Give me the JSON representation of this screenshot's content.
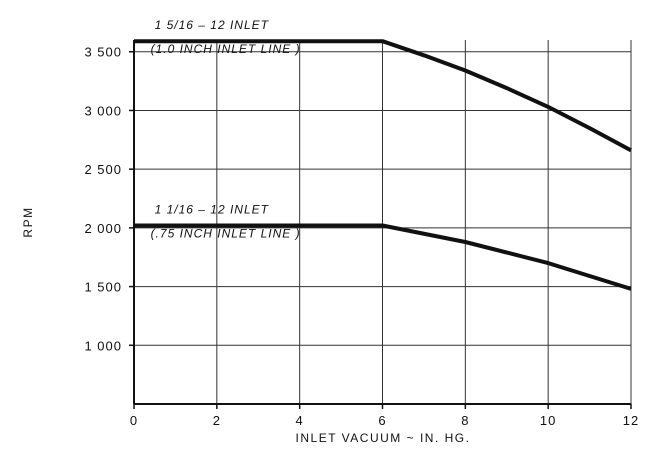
{
  "chart_data": {
    "type": "line",
    "title": "",
    "xlabel": "INLET  VACUUM ~ IN. HG.",
    "ylabel": "RPM",
    "xlim": [
      0,
      12
    ],
    "ylim": [
      500,
      3600
    ],
    "grid": true,
    "x_ticks": [
      0,
      2,
      4,
      6,
      8,
      10,
      12
    ],
    "y_ticks": [
      1000,
      1500,
      2000,
      2500,
      3000,
      3500
    ],
    "x_tick_labels": [
      "0",
      "2",
      "4",
      "6",
      "8",
      "10",
      "12"
    ],
    "y_tick_labels": [
      "1 000",
      "1 500",
      "2 000",
      "2 500",
      "3 000",
      "3 500"
    ],
    "series": [
      {
        "label_lines": [
          "1 5/16 – 12  INLET",
          "(1.0 INCH  INLET  LINE )"
        ],
        "x": [
          0,
          6,
          7,
          8,
          9,
          10,
          11,
          12
        ],
        "y": [
          3590,
          3590,
          3470,
          3340,
          3190,
          3030,
          2850,
          2660
        ]
      },
      {
        "label_lines": [
          "1 1/16 – 12  INLET",
          "(.75  INCH  INLET  LINE )"
        ],
        "x": [
          0,
          6,
          8,
          10,
          12
        ],
        "y": [
          2020,
          2020,
          1880,
          1700,
          1480
        ]
      }
    ],
    "colors": {
      "line": "#111111",
      "grid": "#333333",
      "text": "#111111"
    }
  }
}
